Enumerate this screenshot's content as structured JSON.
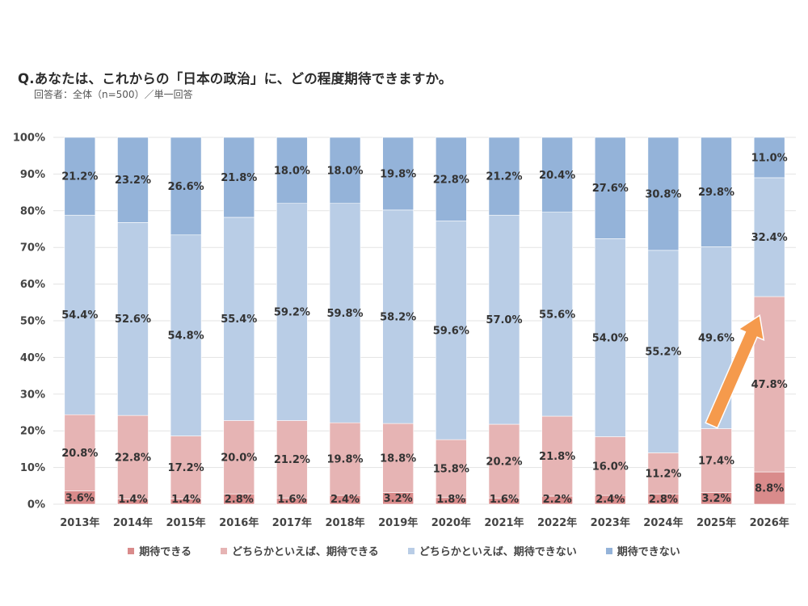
{
  "header": {
    "title": "Q.あなたは、これからの「日本の政治」に、どの程度期待できますか。",
    "subtitle": "回答者：全体（n=500）／単一回答"
  },
  "colors": {
    "expect": "#d98b8b",
    "somewhat_expect": "#e6b4b4",
    "somewhat_not": "#b9cde6",
    "not_expect": "#94b3d9",
    "arrow": "#f59a4c",
    "grid": "#e3e3e3"
  },
  "chart_data": {
    "type": "bar",
    "stacked": true,
    "percent": true,
    "title": "Q.あなたは、これからの「日本の政治」に、どの程度期待できますか。",
    "categories": [
      "2013年",
      "2014年",
      "2015年",
      "2016年",
      "2017年",
      "2018年",
      "2019年",
      "2020年",
      "2021年",
      "2022年",
      "2023年",
      "2024年",
      "2025年",
      "2026年"
    ],
    "ylim": [
      0,
      100
    ],
    "yticks": [
      "0%",
      "10%",
      "20%",
      "30%",
      "40%",
      "50%",
      "60%",
      "70%",
      "80%",
      "90%",
      "100%"
    ],
    "grid": true,
    "legend_position": "bottom",
    "series": [
      {
        "name": "期待できる",
        "color_key": "expect",
        "values": [
          3.6,
          1.4,
          1.4,
          2.8,
          1.6,
          2.4,
          3.2,
          1.8,
          1.6,
          2.2,
          2.4,
          2.8,
          3.2,
          8.8
        ]
      },
      {
        "name": "どちらかといえば、期待できる",
        "color_key": "somewhat_expect",
        "values": [
          20.8,
          22.8,
          17.2,
          20.0,
          21.2,
          19.8,
          18.8,
          15.8,
          20.2,
          21.8,
          16.0,
          11.2,
          17.4,
          47.8
        ]
      },
      {
        "name": "どちらかといえば、期待できない",
        "color_key": "somewhat_not",
        "values": [
          54.4,
          52.6,
          54.8,
          55.4,
          59.2,
          59.8,
          58.2,
          59.6,
          57.0,
          55.6,
          54.0,
          55.2,
          49.6,
          32.4
        ]
      },
      {
        "name": "期待できない",
        "color_key": "not_expect",
        "values": [
          21.2,
          23.2,
          26.6,
          21.8,
          18.0,
          18.0,
          19.8,
          22.8,
          21.2,
          20.4,
          27.6,
          30.8,
          29.8,
          11.0
        ]
      }
    ],
    "annotations": [
      {
        "type": "arrow",
        "description": "upward arrow from 2025 to 2026"
      }
    ]
  }
}
